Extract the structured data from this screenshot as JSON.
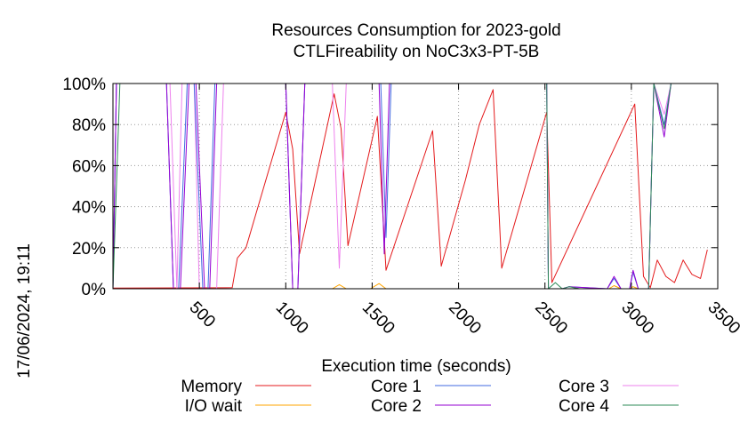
{
  "chart_data": {
    "type": "line",
    "title": "Resources Consumption for 2023-gold",
    "subtitle": "CTLFireability on NoC3x3-PT-5B",
    "xlabel": "Execution time (seconds)",
    "ylabel": "",
    "xlim": [
      0,
      3500
    ],
    "ylim": [
      0,
      100
    ],
    "x_ticks": [
      500,
      1000,
      1500,
      2000,
      2500,
      3000,
      3500
    ],
    "x_tick_labels": [
      "500",
      "1000",
      "1500",
      "2000",
      "2500",
      "3000",
      "3500"
    ],
    "y_ticks": [
      0,
      20,
      40,
      60,
      80,
      100
    ],
    "y_tick_labels": [
      "0%",
      "20%",
      "40%",
      "60%",
      "80%",
      "100%"
    ],
    "grid": true,
    "legend_position": "bottom",
    "timestamp": "17/06/2024, 19:11",
    "series": [
      {
        "name": "Memory",
        "color": "#e41a1c",
        "points": [
          [
            0,
            0.3
          ],
          [
            690,
            0.5
          ],
          [
            720,
            15
          ],
          [
            770,
            20
          ],
          [
            1000,
            86
          ],
          [
            1040,
            68
          ],
          [
            1080,
            17
          ],
          [
            1280,
            95
          ],
          [
            1320,
            78
          ],
          [
            1360,
            21
          ],
          [
            1530,
            84
          ],
          [
            1580,
            9
          ],
          [
            1850,
            77
          ],
          [
            1900,
            11
          ],
          [
            2040,
            53
          ],
          [
            2120,
            80
          ],
          [
            2200,
            97
          ],
          [
            2250,
            10
          ],
          [
            2510,
            86
          ],
          [
            2540,
            3
          ],
          [
            3020,
            90
          ],
          [
            3070,
            6
          ],
          [
            3110,
            0.5
          ],
          [
            3150,
            14
          ],
          [
            3200,
            6
          ],
          [
            3250,
            3
          ],
          [
            3300,
            14
          ],
          [
            3350,
            7
          ],
          [
            3400,
            5
          ],
          [
            3440,
            19
          ]
        ]
      },
      {
        "name": "I/O wait",
        "color": "#ffa500",
        "points": [
          [
            0,
            0
          ],
          [
            1270,
            0
          ],
          [
            1310,
            2
          ],
          [
            1350,
            0
          ],
          [
            1490,
            0
          ],
          [
            1540,
            2.5
          ],
          [
            1580,
            0
          ],
          [
            2870,
            0
          ],
          [
            2900,
            1.5
          ],
          [
            2940,
            0
          ],
          [
            2990,
            0
          ],
          [
            3010,
            1
          ],
          [
            3040,
            0
          ],
          [
            3440,
            0
          ]
        ]
      },
      {
        "name": "Core 1",
        "color": "#4169e1",
        "points": [
          [
            0,
            0
          ],
          [
            20,
            100
          ],
          [
            310,
            100
          ],
          [
            350,
            0
          ],
          [
            380,
            0
          ],
          [
            430,
            100
          ],
          [
            470,
            100
          ],
          [
            520,
            0
          ],
          [
            550,
            0
          ],
          [
            590,
            100
          ],
          [
            1000,
            100
          ],
          [
            1040,
            0
          ],
          [
            1070,
            0
          ],
          [
            1110,
            100
          ],
          [
            1550,
            100
          ],
          [
            1580,
            25
          ],
          [
            1610,
            100
          ],
          [
            2510,
            100
          ],
          [
            2520,
            0
          ],
          [
            2600,
            0
          ],
          [
            2640,
            1
          ],
          [
            2860,
            0
          ],
          [
            2900,
            5
          ],
          [
            2940,
            0
          ],
          [
            2990,
            0
          ],
          [
            3010,
            8
          ],
          [
            3040,
            0
          ],
          [
            3100,
            0
          ],
          [
            3130,
            100
          ],
          [
            3190,
            80
          ],
          [
            3230,
            100
          ],
          [
            3440,
            100
          ]
        ]
      },
      {
        "name": "Core 2",
        "color": "#9400d3",
        "points": [
          [
            0,
            0
          ],
          [
            20,
            100
          ],
          [
            310,
            100
          ],
          [
            350,
            0
          ],
          [
            390,
            0
          ],
          [
            440,
            100
          ],
          [
            480,
            100
          ],
          [
            530,
            0
          ],
          [
            560,
            0
          ],
          [
            600,
            100
          ],
          [
            1000,
            100
          ],
          [
            1040,
            0
          ],
          [
            1070,
            0
          ],
          [
            1110,
            100
          ],
          [
            1540,
            100
          ],
          [
            1570,
            17
          ],
          [
            1600,
            100
          ],
          [
            2510,
            100
          ],
          [
            2520,
            0
          ],
          [
            2600,
            0
          ],
          [
            2640,
            1
          ],
          [
            2860,
            0
          ],
          [
            2900,
            6
          ],
          [
            2940,
            0
          ],
          [
            2990,
            0
          ],
          [
            3010,
            9
          ],
          [
            3040,
            0
          ],
          [
            3100,
            0
          ],
          [
            3130,
            100
          ],
          [
            3190,
            74
          ],
          [
            3230,
            100
          ],
          [
            3440,
            100
          ]
        ]
      },
      {
        "name": "Core 3",
        "color": "#ee82ee",
        "points": [
          [
            0,
            0
          ],
          [
            20,
            100
          ],
          [
            330,
            100
          ],
          [
            370,
            0
          ],
          [
            400,
            100
          ],
          [
            470,
            100
          ],
          [
            500,
            0
          ],
          [
            600,
            0
          ],
          [
            640,
            100
          ],
          [
            1000,
            100
          ],
          [
            1040,
            0
          ],
          [
            1070,
            0
          ],
          [
            1110,
            100
          ],
          [
            1270,
            100
          ],
          [
            1310,
            10
          ],
          [
            1350,
            100
          ],
          [
            2510,
            100
          ],
          [
            3100,
            100
          ],
          [
            3130,
            100
          ],
          [
            3190,
            85
          ],
          [
            3230,
            100
          ],
          [
            3440,
            100
          ]
        ]
      },
      {
        "name": "Core 4",
        "color": "#2e8b57",
        "points": [
          [
            0,
            0
          ],
          [
            40,
            100
          ],
          [
            2510,
            100
          ],
          [
            2520,
            0
          ],
          [
            2560,
            3
          ],
          [
            2600,
            0
          ],
          [
            2640,
            1
          ],
          [
            2700,
            0
          ],
          [
            3100,
            0
          ],
          [
            3130,
            100
          ],
          [
            3190,
            78
          ],
          [
            3230,
            100
          ],
          [
            3440,
            100
          ]
        ]
      }
    ]
  }
}
